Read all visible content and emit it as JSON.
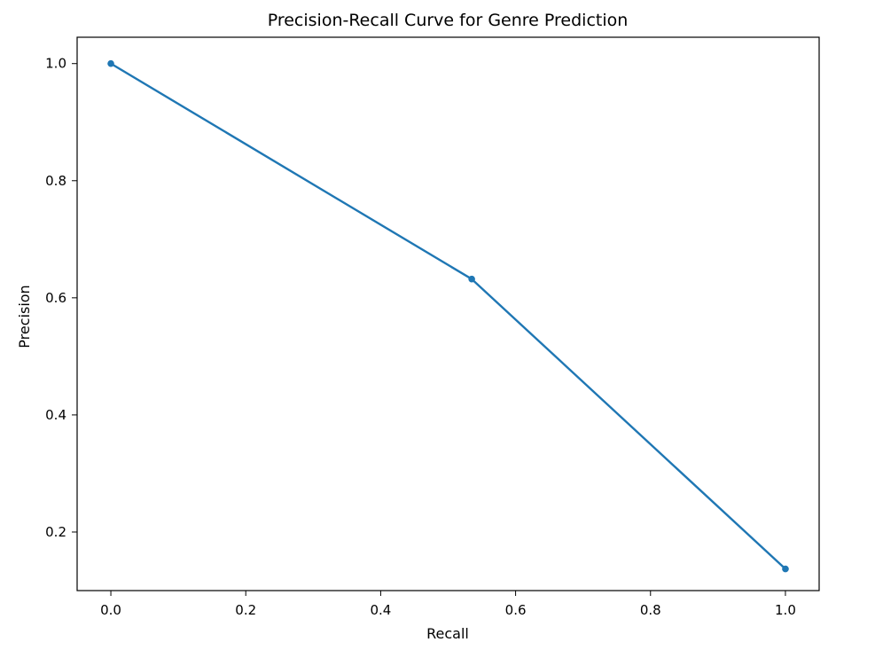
{
  "chart_data": {
    "type": "line",
    "title": "Precision-Recall Curve for Genre Prediction",
    "xlabel": "Recall",
    "ylabel": "Precision",
    "xlim": [
      -0.05,
      1.05
    ],
    "ylim": [
      0.1,
      1.045
    ],
    "xticks": [
      0.0,
      0.2,
      0.4,
      0.6,
      0.8,
      1.0
    ],
    "xtick_labels": [
      "0.0",
      "0.2",
      "0.4",
      "0.6",
      "0.8",
      "1.0"
    ],
    "yticks": [
      0.2,
      0.4,
      0.6,
      0.8,
      1.0
    ],
    "ytick_labels": [
      "0.2",
      "0.4",
      "0.6",
      "0.8",
      "1.0"
    ],
    "grid": false,
    "series": [
      {
        "color": "#1f77b4",
        "marker": "circle",
        "x": [
          0.0,
          0.535,
          1.0
        ],
        "y": [
          1.0,
          0.632,
          0.137
        ]
      }
    ]
  }
}
